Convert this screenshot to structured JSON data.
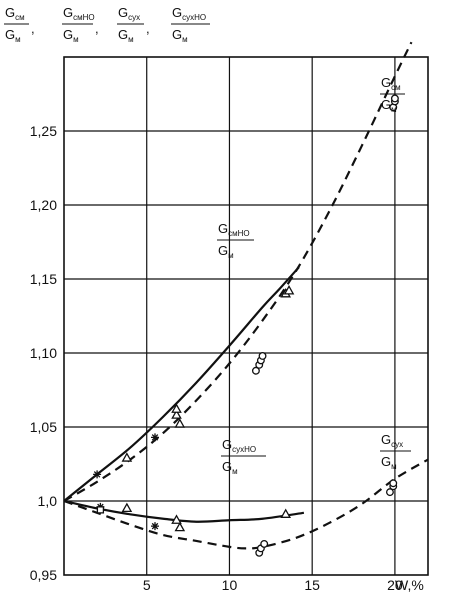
{
  "chart_data": {
    "type": "scatter",
    "title": "",
    "xlabel": "W,%",
    "ylabel": "",
    "xlim": [
      0,
      22
    ],
    "ylim": [
      0.95,
      1.3
    ],
    "grid": true,
    "x_ticks": [
      "5",
      "10",
      "15",
      "20"
    ],
    "y_ticks": [
      "0,95",
      "1,0",
      "1,05",
      "1,10",
      "1,15",
      "1,20",
      "1,25"
    ],
    "y_tick_values": [
      0.95,
      1.0,
      1.05,
      1.1,
      1.15,
      1.2,
      1.25
    ],
    "x_tick_values": [
      5,
      10,
      15,
      20
    ],
    "y_axis_label": {
      "terms": [
        {
          "num": "G",
          "num_sub": "см",
          "den": "G",
          "den_sub": "м"
        },
        {
          "num": "G",
          "num_sub": "смНО",
          "den": "G",
          "den_sub": "м"
        },
        {
          "num": "G",
          "num_sub": "сух",
          "den": "G",
          "den_sub": "м"
        },
        {
          "num": "G",
          "num_sub": "сухНО",
          "den": "G",
          "den_sub": "м"
        }
      ],
      "separator": ","
    },
    "curve_labels": [
      {
        "num": "G",
        "num_sub": "см",
        "den": "G",
        "den_sub": "м"
      },
      {
        "num": "G",
        "num_sub": "смНО",
        "den": "G",
        "den_sub": "м"
      },
      {
        "num": "G",
        "num_sub": "сухНО",
        "den": "G",
        "den_sub": "м"
      },
      {
        "num": "G",
        "num_sub": "сух",
        "den": "G",
        "den_sub": "м"
      }
    ],
    "series": [
      {
        "style": "dashed",
        "x": [
          0,
          2,
          4,
          6,
          8,
          10,
          12,
          14,
          16,
          18,
          20,
          21
        ],
        "y": [
          1.0,
          1.013,
          1.028,
          1.046,
          1.068,
          1.093,
          1.122,
          1.155,
          1.195,
          1.24,
          1.287,
          1.31
        ]
      },
      {
        "style": "solid",
        "x": [
          0,
          2,
          4,
          6,
          8,
          10,
          12,
          13,
          14.2
        ],
        "y": [
          1.0,
          1.018,
          1.036,
          1.057,
          1.08,
          1.105,
          1.131,
          1.143,
          1.158
        ]
      },
      {
        "style": "dashed",
        "x": [
          0,
          2,
          4,
          6,
          8,
          10,
          11,
          12,
          14,
          16,
          18,
          20,
          22
        ],
        "y": [
          1.0,
          0.992,
          0.984,
          0.977,
          0.973,
          0.969,
          0.968,
          0.969,
          0.975,
          0.985,
          0.998,
          1.015,
          1.028
        ]
      },
      {
        "style": "solid",
        "x": [
          0,
          2,
          4,
          6,
          8,
          10,
          12,
          14.5
        ],
        "y": [
          1.0,
          0.995,
          0.991,
          0.988,
          0.986,
          0.987,
          0.988,
          0.992
        ]
      }
    ],
    "points": [
      {
        "marker": "circle",
        "x": [
          11.6,
          11.8,
          11.9,
          12.0,
          19.9,
          20.0,
          20.0,
          11.8,
          11.9,
          12.1,
          19.7,
          19.9,
          19.9
        ],
        "y": [
          1.088,
          1.092,
          1.095,
          1.098,
          1.266,
          1.27,
          1.272,
          0.965,
          0.968,
          0.971,
          1.006,
          1.01,
          1.012
        ]
      },
      {
        "marker": "triangle",
        "x": [
          3.8,
          6.8,
          6.8,
          7.0,
          13.4,
          13.6,
          3.8,
          6.8,
          7.0,
          13.4
        ],
        "y": [
          1.029,
          1.058,
          1.062,
          1.052,
          1.14,
          1.142,
          0.995,
          0.987,
          0.982,
          0.991
        ]
      },
      {
        "marker": "asterisk",
        "x": [
          2.0,
          5.5,
          2.2,
          5.5
        ],
        "y": [
          1.018,
          1.043,
          0.996,
          0.983
        ]
      },
      {
        "marker": "square",
        "x": [
          2.2
        ],
        "y": [
          0.994
        ]
      }
    ]
  }
}
